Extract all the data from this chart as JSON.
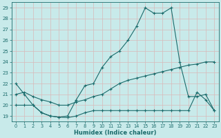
{
  "xlabel": "Humidex (Indice chaleur)",
  "bg_color": "#c8eaea",
  "grid_color": "#b0d8d8",
  "line_color": "#1a6b6b",
  "xlim": [
    -0.5,
    23.5
  ],
  "ylim": [
    18.5,
    29.5
  ],
  "xticks": [
    0,
    1,
    2,
    3,
    4,
    5,
    6,
    7,
    8,
    9,
    10,
    11,
    12,
    13,
    14,
    15,
    16,
    17,
    18,
    19,
    20,
    21,
    22,
    23
  ],
  "yticks": [
    19,
    20,
    21,
    22,
    23,
    24,
    25,
    26,
    27,
    28,
    29
  ],
  "lines": [
    {
      "x": [
        0,
        1,
        2,
        3,
        4,
        5,
        6,
        7,
        8,
        9,
        10,
        11,
        12,
        13,
        14,
        15,
        16,
        17,
        18,
        19,
        20,
        21,
        22,
        23
      ],
      "y": [
        22,
        21,
        20.0,
        19.3,
        19.0,
        18.9,
        19.0,
        20.5,
        21.8,
        22.0,
        23.5,
        24.5,
        25.0,
        26.0,
        27.3,
        29.0,
        28.5,
        28.5,
        29.0,
        24.0,
        20.8,
        20.8,
        21.0,
        19.5
      ]
    },
    {
      "x": [
        0,
        1,
        2,
        3,
        4,
        5,
        6,
        7,
        8,
        9,
        10,
        11,
        12,
        13,
        14,
        15,
        16,
        17,
        18,
        19,
        20,
        21,
        22,
        23
      ],
      "y": [
        21.0,
        21.2,
        20.8,
        20.5,
        20.3,
        20.0,
        20.0,
        20.3,
        20.5,
        20.8,
        21.0,
        21.5,
        22.0,
        22.3,
        22.5,
        22.7,
        22.9,
        23.1,
        23.3,
        23.5,
        23.7,
        23.8,
        24.0,
        24.0
      ]
    },
    {
      "x": [
        0,
        1,
        2,
        3,
        4,
        5,
        6,
        7,
        8,
        9,
        10,
        11,
        12,
        13,
        14,
        15,
        16,
        17,
        18,
        19,
        20,
        21,
        22,
        23
      ],
      "y": [
        20.0,
        20.0,
        20.0,
        19.3,
        19.0,
        18.9,
        18.85,
        19.0,
        19.3,
        19.5,
        19.5,
        19.5,
        19.5,
        19.5,
        19.5,
        19.5,
        19.5,
        19.5,
        19.5,
        19.5,
        19.5,
        21.2,
        20.5,
        19.5
      ]
    }
  ]
}
